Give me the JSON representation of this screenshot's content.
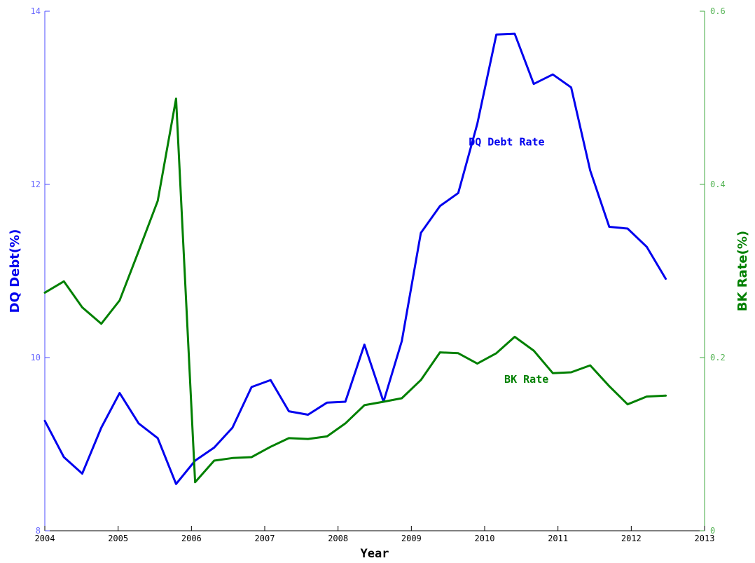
{
  "chart_data": {
    "type": "line",
    "title": "",
    "xlabel": "Year",
    "ylabel_left": "DQ Debt(%)",
    "ylabel_right": "BK Rate(%)",
    "xlim": [
      2004,
      2013
    ],
    "ylim_left": [
      8,
      14
    ],
    "ylim_right": [
      0,
      0.6
    ],
    "x_ticks": [
      "2004",
      "2005",
      "2006",
      "2007",
      "2008",
      "2009",
      "2010",
      "2011",
      "2012",
      "2013"
    ],
    "y_left_ticks": [
      "8",
      "10",
      "12",
      "14"
    ],
    "y_right_ticks": [
      "0",
      "0.2",
      "0.4",
      "0.6"
    ],
    "grid": false,
    "x": [
      2004.0,
      2004.26,
      2004.51,
      2004.77,
      2005.02,
      2005.28,
      2005.54,
      2005.79,
      2006.05,
      2006.31,
      2006.56,
      2006.82,
      2007.08,
      2007.33,
      2007.59,
      2007.85,
      2008.1,
      2008.36,
      2008.62,
      2008.87,
      2009.13,
      2009.39,
      2009.64,
      2009.9,
      2010.16,
      2010.41,
      2010.67,
      2010.93,
      2011.18,
      2011.44,
      2011.7,
      2011.95,
      2012.21,
      2012.47
    ],
    "series": [
      {
        "name": "DQ Debt Rate",
        "axis": "left",
        "color": "#0000ee",
        "values": [
          9.27,
          8.85,
          8.66,
          9.19,
          9.59,
          9.24,
          9.07,
          8.54,
          8.81,
          8.96,
          9.19,
          9.66,
          9.74,
          9.38,
          9.34,
          9.48,
          9.49,
          10.15,
          9.49,
          10.19,
          11.44,
          11.75,
          11.9,
          12.7,
          13.73,
          13.74,
          13.16,
          13.27,
          13.12,
          12.16,
          11.51,
          11.49,
          11.28,
          10.91
        ]
      },
      {
        "name": "BK Rate",
        "axis": "right",
        "color": "#008000",
        "values": [
          0.275,
          0.288,
          0.258,
          0.239,
          0.266,
          0.323,
          0.381,
          0.499,
          0.056,
          0.081,
          0.084,
          0.085,
          0.097,
          0.107,
          0.106,
          0.109,
          0.124,
          0.145,
          0.149,
          0.153,
          0.174,
          0.206,
          0.205,
          0.193,
          0.205,
          0.224,
          0.208,
          0.182,
          0.183,
          0.191,
          0.167,
          0.146,
          0.155,
          0.156
        ]
      }
    ],
    "annotations": [
      {
        "text": "DQ Debt Rate",
        "x": 2010.3,
        "y": 12.45,
        "axis": "left"
      },
      {
        "text": "BK Rate",
        "x": 2010.57,
        "y": 0.171,
        "axis": "right"
      }
    ]
  }
}
